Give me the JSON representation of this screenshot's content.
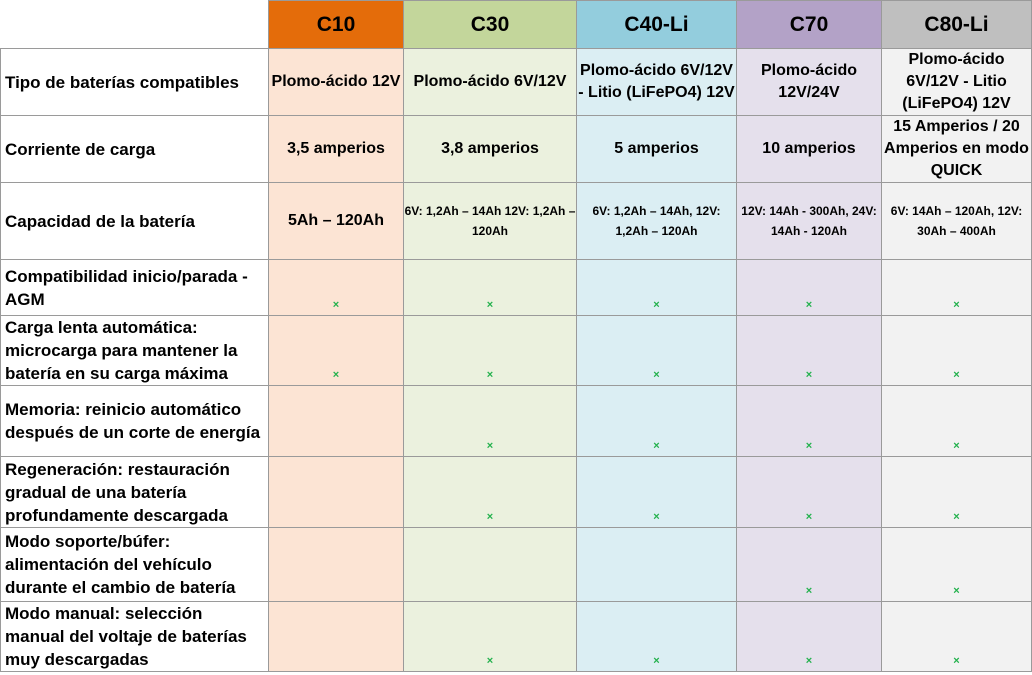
{
  "colors": {
    "C10": {
      "header": "#e46c0a",
      "body": "#fce4d4"
    },
    "C30": {
      "header": "#c3d69b",
      "body": "#ebf1de"
    },
    "C40-Li": {
      "header": "#93cddd",
      "body": "#dbeef3"
    },
    "C70": {
      "header": "#b3a2c7",
      "body": "#e5e0ec"
    },
    "C80-Li": {
      "header": "#bfbfbf",
      "body": "#f2f2f2"
    },
    "check": "#22b14c"
  },
  "check_icon": "×",
  "columns": [
    "C10",
    "C30",
    "C40-Li",
    "C70",
    "C80-Li"
  ],
  "rows": [
    {
      "label": "Tipo de baterías compatibles",
      "values": [
        "Plomo-ácido 12V",
        "Plomo-ácido 6V/12V",
        "Plomo-ácido 6V/12V - Litio (LiFePO4) 12V",
        "Plomo-ácido 12V/24V",
        "Plomo-ácido 6V/12V - Litio (LiFePO4) 12V"
      ]
    },
    {
      "label": "Corriente de carga",
      "values": [
        "3,5 amperios",
        "3,8 amperios",
        "5 amperios",
        "10 amperios",
        "15 Amperios / 20 Amperios en modo QUICK"
      ]
    },
    {
      "label": "Capacidad de la batería",
      "values": [
        "5Ah – 120Ah",
        "6V: 1,2Ah – 14Ah 12V: 1,2Ah – 120Ah",
        "6V: 1,2Ah – 14Ah, 12V: 1,2Ah – 120Ah",
        "12V: 14Ah - 300Ah, 24V: 14Ah - 120Ah",
        "6V: 14Ah – 120Ah, 12V: 30Ah – 400Ah"
      ]
    },
    {
      "label": "Compatibilidad inicio/parada - AGM",
      "checks": [
        true,
        true,
        true,
        true,
        true
      ]
    },
    {
      "label": "Carga lenta automática: microcarga para mantener la batería en su carga máxima",
      "checks": [
        true,
        true,
        true,
        true,
        true
      ]
    },
    {
      "label": "Memoria: reinicio automático después de un corte de energía",
      "checks": [
        false,
        true,
        true,
        true,
        true
      ]
    },
    {
      "label": "Regeneración: restauración gradual de una batería profundamente descargada",
      "checks": [
        false,
        true,
        true,
        true,
        true
      ]
    },
    {
      "label": "Modo soporte/búfer: alimentación del vehículo durante el cambio de batería",
      "checks": [
        false,
        false,
        false,
        true,
        true
      ]
    },
    {
      "label": "Modo manual: selección manual del voltaje de baterías muy descargadas",
      "checks": [
        false,
        true,
        true,
        true,
        true
      ]
    }
  ]
}
